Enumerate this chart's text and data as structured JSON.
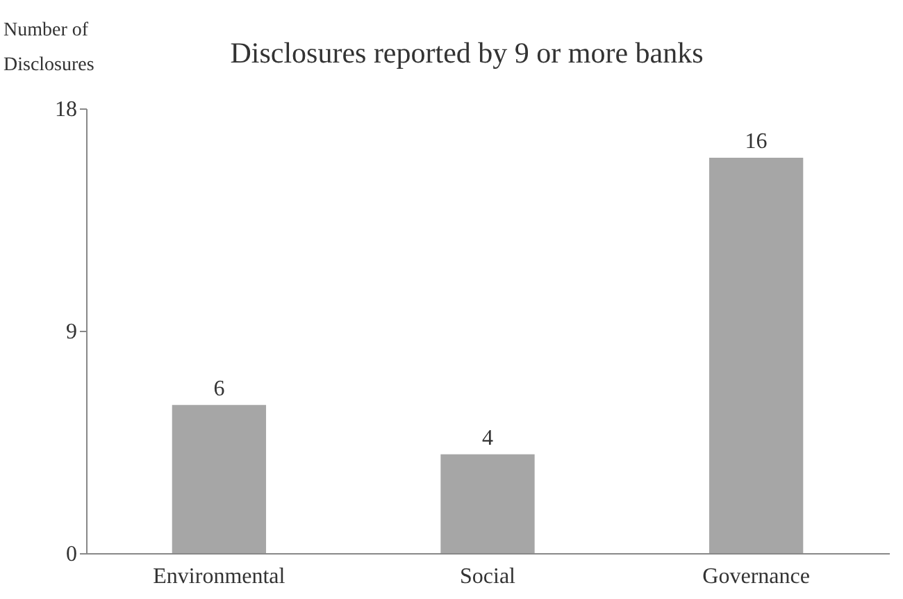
{
  "chart_data": {
    "type": "bar",
    "title": "Disclosures reported by 9 or more banks",
    "ylabel": "Number of Disclosures",
    "categories": [
      "Environmental",
      "Social",
      "Governance"
    ],
    "values": [
      6,
      4,
      16
    ],
    "color": "#a6a6a6",
    "ylim": [
      0,
      18
    ],
    "yticks": [
      0,
      9,
      18
    ],
    "grid": false,
    "data_labels": true
  }
}
